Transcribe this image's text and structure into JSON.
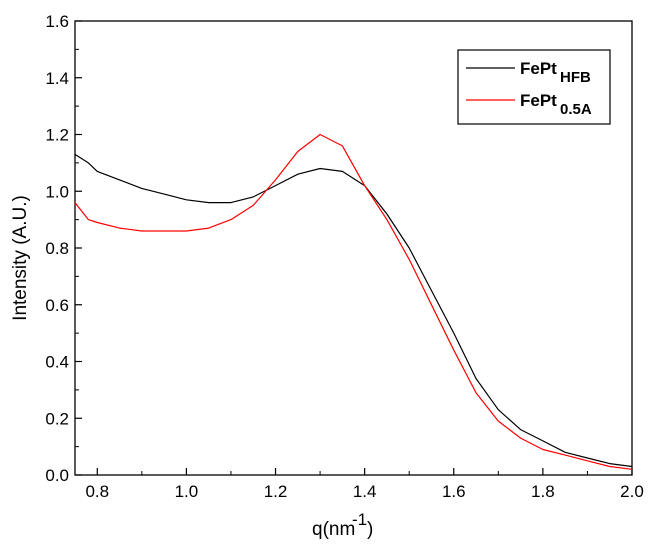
{
  "chart_data": {
    "type": "line",
    "title": "",
    "xlabel": "q(nm",
    "xlabel_sup": "-1",
    "xlabel_close": ")",
    "ylabel": "Intensity (A.U.)",
    "xlim": [
      0.75,
      2.0
    ],
    "ylim": [
      0.0,
      1.6
    ],
    "xticks": [
      "0.8",
      "1.0",
      "1.2",
      "1.4",
      "1.6",
      "1.8",
      "2.0"
    ],
    "xtick_values": [
      0.8,
      1.0,
      1.2,
      1.4,
      1.6,
      1.8,
      2.0
    ],
    "yticks": [
      "0.0",
      "0.2",
      "0.4",
      "0.6",
      "0.8",
      "1.0",
      "1.2",
      "1.4",
      "1.6"
    ],
    "ytick_values": [
      0.0,
      0.2,
      0.4,
      0.6,
      0.8,
      1.0,
      1.2,
      1.4,
      1.6
    ],
    "grid": false,
    "legend_position": "top-right",
    "series": [
      {
        "name": "FePt",
        "subscript": "HFB",
        "color": "#000000",
        "x": [
          0.75,
          0.78,
          0.8,
          0.85,
          0.9,
          0.95,
          1.0,
          1.05,
          1.1,
          1.15,
          1.2,
          1.25,
          1.3,
          1.35,
          1.4,
          1.45,
          1.5,
          1.55,
          1.6,
          1.65,
          1.7,
          1.75,
          1.8,
          1.85,
          1.9,
          1.95,
          2.0
        ],
        "values": [
          1.13,
          1.1,
          1.07,
          1.04,
          1.01,
          0.99,
          0.97,
          0.96,
          0.96,
          0.98,
          1.02,
          1.06,
          1.08,
          1.07,
          1.02,
          0.92,
          0.8,
          0.65,
          0.5,
          0.34,
          0.23,
          0.16,
          0.12,
          0.08,
          0.06,
          0.04,
          0.03
        ]
      },
      {
        "name": "FePt",
        "subscript": "0.5A",
        "color": "#ff0000",
        "x": [
          0.75,
          0.78,
          0.8,
          0.85,
          0.9,
          0.95,
          1.0,
          1.05,
          1.1,
          1.15,
          1.2,
          1.25,
          1.3,
          1.35,
          1.4,
          1.45,
          1.5,
          1.55,
          1.6,
          1.65,
          1.7,
          1.75,
          1.8,
          1.85,
          1.9,
          1.95,
          2.0
        ],
        "values": [
          0.96,
          0.9,
          0.89,
          0.87,
          0.86,
          0.86,
          0.86,
          0.87,
          0.9,
          0.95,
          1.04,
          1.14,
          1.2,
          1.16,
          1.02,
          0.9,
          0.76,
          0.6,
          0.44,
          0.29,
          0.19,
          0.13,
          0.09,
          0.07,
          0.05,
          0.03,
          0.02
        ]
      }
    ]
  }
}
